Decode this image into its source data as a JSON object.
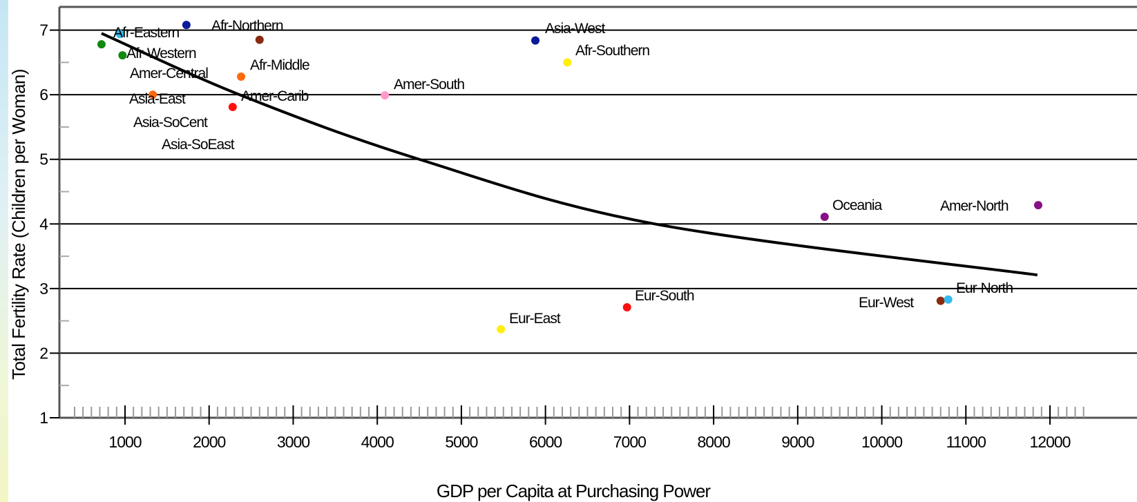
{
  "chart_data": {
    "type": "scatter",
    "xlabel": "GDP per Capita at Purchasing Power",
    "ylabel": "Total Fertility Rate (Children per Woman)",
    "xlim": [
      250,
      12400
    ],
    "ylim": [
      1,
      7.4
    ],
    "xticks": [
      1000,
      2000,
      3000,
      4000,
      5000,
      6000,
      7000,
      8000,
      9000,
      10000,
      11000,
      12000
    ],
    "yticks": [
      1,
      2,
      3,
      4,
      5,
      6,
      7
    ],
    "grid": "horizontal",
    "points": [
      {
        "label": "Afr-Eastern",
        "x": 720,
        "y": 6.78,
        "color": "#118811"
      },
      {
        "label": "Afr-Western",
        "x": 970,
        "y": 6.61,
        "color": "#118811"
      },
      {
        "label": "Afr-Northern",
        "x": 1730,
        "y": 7.08,
        "color": "#0a1a99"
      },
      {
        "label": "Afr-Middle",
        "x": 2380,
        "y": 6.28,
        "color": "#ff6a10"
      },
      {
        "label": "Amer-Central",
        "x": 2600,
        "y": 6.85,
        "color": "#8b2a10"
      },
      {
        "label": "Asia-East",
        "x": 1330,
        "y": 6.0,
        "color": "#ff6a10"
      },
      {
        "label": "Amer-Carib",
        "x": 2280,
        "y": 5.81,
        "color": "#ff1010"
      },
      {
        "label": "Asia-SoCent",
        "x": 940,
        "y": 6.94,
        "color": "#33bbee"
      },
      {
        "label": "Asia-SoEast",
        "x": 940,
        "y": 6.94,
        "color": "#33bbee"
      },
      {
        "label": "Amer-South",
        "x": 4090,
        "y": 5.99,
        "color": "#ff99cc"
      },
      {
        "label": "Asia-West",
        "x": 5880,
        "y": 6.84,
        "color": "#0a1a99"
      },
      {
        "label": "Afr-Southern",
        "x": 6260,
        "y": 6.5,
        "color": "#ffee10"
      },
      {
        "label": "Oceania",
        "x": 9320,
        "y": 4.11,
        "color": "#881188"
      },
      {
        "label": "Amer-North",
        "x": 11860,
        "y": 4.29,
        "color": "#881188"
      },
      {
        "label": "Eur-South",
        "x": 6970,
        "y": 2.71,
        "color": "#ff1010"
      },
      {
        "label": "Eur-East",
        "x": 5470,
        "y": 2.37,
        "color": "#ffee10"
      },
      {
        "label": "Eur-West",
        "x": 10700,
        "y": 2.81,
        "color": "#8b2a10"
      },
      {
        "label": "Eur-North",
        "x": 10790,
        "y": 2.83,
        "color": "#33bbee"
      }
    ],
    "trend_line": {
      "type": "curve",
      "color": "#000000",
      "points": [
        [
          720,
          6.95
        ],
        [
          2400,
          5.98
        ],
        [
          4500,
          5.0
        ],
        [
          7300,
          4.0
        ],
        [
          11850,
          3.21
        ]
      ]
    }
  }
}
